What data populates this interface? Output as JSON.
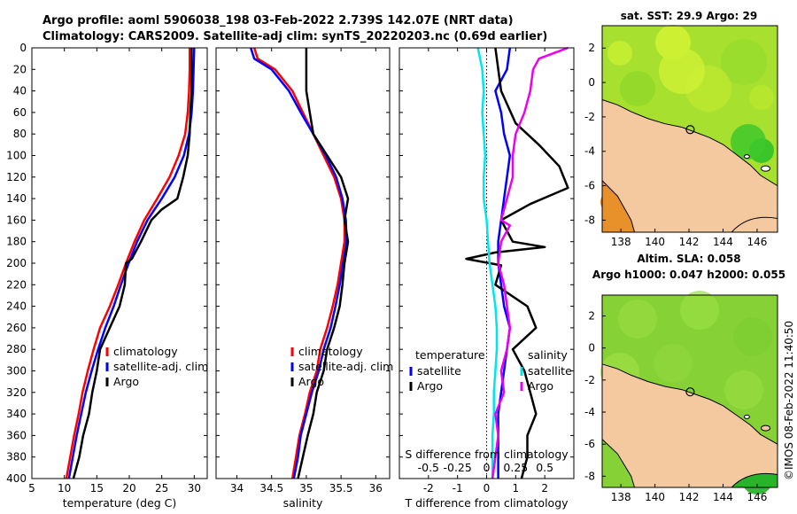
{
  "title": {
    "line1": "Argo profile: aoml 5906038_198 03-Feb-2022 2.739S 142.07E (NRT data)",
    "line2": "Climatology: CARS2009. Satellite-adj clim: synTS_20220203.nc (0.69d earlier)"
  },
  "maps": {
    "sst_title": "sat. SST: 29.9 Argo: 29",
    "sla_title1": "Altim. SLA: 0.058",
    "sla_title2": "Argo h1000: 0.047 h2000: 0.055",
    "x_ticks": [
      138,
      140,
      142,
      144,
      146
    ],
    "y_ticks": [
      2,
      0,
      -2,
      -4,
      -6,
      -8
    ],
    "x_range": [
      136.9,
      147.2
    ],
    "y_range": [
      -8.7,
      3.3
    ],
    "float_position": {
      "lon": 142.07,
      "lat": -2.739
    },
    "colors": {
      "land": "#f5c9a0",
      "sst_base": "#a8e030",
      "sla_base": "#86d236"
    }
  },
  "timestamp": "©IMOS 08-Feb-2022 11:40:50",
  "chart_data": [
    {
      "id": "temperature",
      "type": "line",
      "xlabel": "temperature (deg C)",
      "ylabel": "",
      "xlim": [
        5,
        32
      ],
      "ylim": [
        0,
        400
      ],
      "x_ticks": [
        5,
        10,
        15,
        20,
        25,
        30
      ],
      "y_ticks": [
        0,
        20,
        40,
        60,
        80,
        100,
        120,
        140,
        160,
        180,
        200,
        220,
        240,
        260,
        280,
        300,
        320,
        340,
        360,
        380,
        400
      ],
      "legend": [
        "climatology",
        "satellite-adj. clim",
        "Argo"
      ],
      "series": [
        {
          "name": "climatology",
          "color": "#ff0000",
          "points": [
            [
              29.3,
              0
            ],
            [
              29.3,
              20
            ],
            [
              29.2,
              40
            ],
            [
              29.0,
              60
            ],
            [
              28.6,
              80
            ],
            [
              27.6,
              100
            ],
            [
              26.2,
              120
            ],
            [
              24.3,
              140
            ],
            [
              22.3,
              160
            ],
            [
              20.8,
              180
            ],
            [
              19.5,
              200
            ],
            [
              18.3,
              220
            ],
            [
              17.0,
              240
            ],
            [
              15.5,
              260
            ],
            [
              14.5,
              280
            ],
            [
              13.6,
              300
            ],
            [
              12.8,
              320
            ],
            [
              12.2,
              340
            ],
            [
              11.5,
              360
            ],
            [
              10.9,
              380
            ],
            [
              10.3,
              400
            ]
          ]
        },
        {
          "name": "satellite-adj. clim",
          "color": "#0000ff",
          "points": [
            [
              30.0,
              0
            ],
            [
              29.9,
              20
            ],
            [
              29.8,
              40
            ],
            [
              29.6,
              60
            ],
            [
              29.2,
              80
            ],
            [
              28.4,
              100
            ],
            [
              27.0,
              120
            ],
            [
              25.0,
              140
            ],
            [
              22.8,
              160
            ],
            [
              21.2,
              180
            ],
            [
              19.9,
              200
            ],
            [
              18.7,
              220
            ],
            [
              17.6,
              240
            ],
            [
              16.3,
              260
            ],
            [
              15.2,
              280
            ],
            [
              14.2,
              300
            ],
            [
              13.3,
              320
            ],
            [
              12.6,
              340
            ],
            [
              11.9,
              360
            ],
            [
              11.3,
              380
            ],
            [
              10.7,
              400
            ]
          ]
        },
        {
          "name": "Argo",
          "color": "#000000",
          "points": [
            [
              29.6,
              0
            ],
            [
              29.6,
              20
            ],
            [
              29.6,
              40
            ],
            [
              29.4,
              60
            ],
            [
              29.3,
              80
            ],
            [
              29.0,
              100
            ],
            [
              28.3,
              120
            ],
            [
              27.4,
              140
            ],
            [
              25.0,
              150
            ],
            [
              23.4,
              160
            ],
            [
              21.8,
              180
            ],
            [
              20.4,
              196
            ],
            [
              19.5,
              200
            ],
            [
              19.3,
              220
            ],
            [
              18.5,
              240
            ],
            [
              17.0,
              260
            ],
            [
              15.5,
              280
            ],
            [
              15.0,
              300
            ],
            [
              14.3,
              320
            ],
            [
              13.8,
              340
            ],
            [
              12.9,
              360
            ],
            [
              12.3,
              380
            ],
            [
              11.4,
              400
            ]
          ]
        }
      ]
    },
    {
      "id": "salinity",
      "type": "line",
      "xlabel": "salinity",
      "ylabel": "",
      "xlim": [
        33.7,
        36.2
      ],
      "ylim": [
        0,
        400
      ],
      "x_ticks": [
        34,
        34.5,
        35,
        35.5,
        36
      ],
      "y_ticks": [
        0,
        20,
        40,
        60,
        80,
        100,
        120,
        140,
        160,
        180,
        200,
        220,
        240,
        260,
        280,
        300,
        320,
        340,
        360,
        380,
        400
      ],
      "legend": [
        "climatology",
        "satellite-adj. clim",
        "Argo"
      ],
      "series": [
        {
          "name": "climatology",
          "color": "#ff0000",
          "points": [
            [
              34.25,
              0
            ],
            [
              34.3,
              10
            ],
            [
              34.55,
              20
            ],
            [
              34.8,
              40
            ],
            [
              34.95,
              60
            ],
            [
              35.1,
              80
            ],
            [
              35.25,
              100
            ],
            [
              35.4,
              120
            ],
            [
              35.5,
              140
            ],
            [
              35.55,
              160
            ],
            [
              35.55,
              180
            ],
            [
              35.5,
              200
            ],
            [
              35.45,
              220
            ],
            [
              35.38,
              240
            ],
            [
              35.3,
              260
            ],
            [
              35.2,
              280
            ],
            [
              35.15,
              300
            ],
            [
              35.05,
              320
            ],
            [
              34.98,
              340
            ],
            [
              34.9,
              360
            ],
            [
              34.85,
              380
            ],
            [
              34.8,
              400
            ]
          ]
        },
        {
          "name": "satellite-adj. clim",
          "color": "#0000ff",
          "points": [
            [
              34.2,
              0
            ],
            [
              34.25,
              10
            ],
            [
              34.5,
              20
            ],
            [
              34.75,
              40
            ],
            [
              34.92,
              60
            ],
            [
              35.1,
              80
            ],
            [
              35.28,
              100
            ],
            [
              35.43,
              120
            ],
            [
              35.52,
              140
            ],
            [
              35.57,
              160
            ],
            [
              35.58,
              180
            ],
            [
              35.53,
              200
            ],
            [
              35.48,
              220
            ],
            [
              35.42,
              240
            ],
            [
              35.35,
              260
            ],
            [
              35.25,
              280
            ],
            [
              35.18,
              300
            ],
            [
              35.08,
              320
            ],
            [
              35.0,
              340
            ],
            [
              34.92,
              360
            ],
            [
              34.88,
              380
            ],
            [
              34.82,
              400
            ]
          ]
        },
        {
          "name": "Argo",
          "color": "#000000",
          "points": [
            [
              35.0,
              0
            ],
            [
              35.0,
              20
            ],
            [
              35.0,
              40
            ],
            [
              35.05,
              60
            ],
            [
              35.1,
              80
            ],
            [
              35.3,
              100
            ],
            [
              35.5,
              120
            ],
            [
              35.6,
              140
            ],
            [
              35.55,
              160
            ],
            [
              35.6,
              180
            ],
            [
              35.55,
              200
            ],
            [
              35.52,
              220
            ],
            [
              35.48,
              240
            ],
            [
              35.4,
              260
            ],
            [
              35.3,
              280
            ],
            [
              35.25,
              300
            ],
            [
              35.15,
              320
            ],
            [
              35.1,
              340
            ],
            [
              35.02,
              360
            ],
            [
              34.95,
              380
            ],
            [
              34.88,
              400
            ]
          ]
        }
      ]
    },
    {
      "id": "differences",
      "type": "line",
      "xlabel": "T difference from climatology",
      "xlabel2": "S difference from climatology",
      "xlim": [
        -3,
        3
      ],
      "ylim": [
        0,
        400
      ],
      "x_ticks": [
        -2,
        -1,
        0,
        1,
        2
      ],
      "x_ticks_s": [
        -0.5,
        -0.25,
        0,
        0.25,
        0.5
      ],
      "x_ticks_s_labels": [
        "-0.5",
        "-0.25",
        "0",
        "0.25",
        "0.5"
      ],
      "x_ticks_s_positions": [
        -2,
        -1,
        0,
        1,
        2
      ],
      "y_ticks": [
        0,
        20,
        40,
        60,
        80,
        100,
        120,
        140,
        160,
        180,
        200,
        220,
        240,
        260,
        280,
        300,
        320,
        340,
        360,
        380,
        400
      ],
      "legend_left_title": "temperature",
      "legend_right_title": "salinity",
      "legend_left": [
        "satellite",
        "Argo"
      ],
      "legend_right": [
        "satellite",
        "Argo"
      ],
      "series": [
        {
          "name": "T satellite",
          "color": "#0000ff",
          "points": [
            [
              0.8,
              0
            ],
            [
              0.7,
              20
            ],
            [
              0.3,
              40
            ],
            [
              0.5,
              60
            ],
            [
              0.6,
              80
            ],
            [
              0.8,
              100
            ],
            [
              0.7,
              120
            ],
            [
              0.6,
              140
            ],
            [
              0.5,
              160
            ],
            [
              0.4,
              180
            ],
            [
              0.4,
              200
            ],
            [
              0.5,
              220
            ],
            [
              0.6,
              240
            ],
            [
              0.8,
              260
            ],
            [
              0.7,
              280
            ],
            [
              0.6,
              300
            ],
            [
              0.5,
              320
            ],
            [
              0.4,
              340
            ],
            [
              0.4,
              360
            ],
            [
              0.4,
              380
            ],
            [
              0.4,
              400
            ]
          ]
        },
        {
          "name": "T Argo",
          "color": "#000000",
          "points": [
            [
              0.3,
              0
            ],
            [
              0.5,
              40
            ],
            [
              1.0,
              70
            ],
            [
              1.8,
              90
            ],
            [
              2.5,
              110
            ],
            [
              2.8,
              130
            ],
            [
              1.5,
              145
            ],
            [
              0.5,
              160
            ],
            [
              0.9,
              180
            ],
            [
              2.0,
              185
            ],
            [
              0.3,
              190
            ],
            [
              -0.7,
              196
            ],
            [
              0.5,
              202
            ],
            [
              0.3,
              220
            ],
            [
              1.4,
              240
            ],
            [
              1.7,
              260
            ],
            [
              0.9,
              280
            ],
            [
              1.3,
              300
            ],
            [
              1.5,
              320
            ],
            [
              1.7,
              340
            ],
            [
              1.4,
              360
            ],
            [
              1.4,
              380
            ],
            [
              1.2,
              400
            ]
          ]
        },
        {
          "name": "S satellite",
          "color": "#00e5ee",
          "points": [
            [
              -0.3,
              0
            ],
            [
              -0.15,
              20
            ],
            [
              -0.1,
              40
            ],
            [
              -0.15,
              60
            ],
            [
              -0.1,
              80
            ],
            [
              -0.05,
              100
            ],
            [
              -0.1,
              120
            ],
            [
              -0.1,
              140
            ],
            [
              0.0,
              160
            ],
            [
              0.05,
              180
            ],
            [
              0.1,
              200
            ],
            [
              0.2,
              220
            ],
            [
              0.3,
              240
            ],
            [
              0.35,
              260
            ],
            [
              0.35,
              280
            ],
            [
              0.3,
              300
            ],
            [
              0.25,
              320
            ],
            [
              0.25,
              340
            ],
            [
              0.2,
              360
            ],
            [
              0.2,
              380
            ],
            [
              0.2,
              400
            ]
          ]
        },
        {
          "name": "S Argo",
          "color": "#ee00ee",
          "points": [
            [
              2.8,
              0
            ],
            [
              1.8,
              10
            ],
            [
              1.6,
              20
            ],
            [
              1.5,
              40
            ],
            [
              1.3,
              60
            ],
            [
              1.0,
              80
            ],
            [
              0.9,
              100
            ],
            [
              0.9,
              120
            ],
            [
              0.7,
              140
            ],
            [
              0.5,
              160
            ],
            [
              0.8,
              165
            ],
            [
              0.5,
              180
            ],
            [
              0.4,
              200
            ],
            [
              0.6,
              220
            ],
            [
              0.7,
              240
            ],
            [
              0.8,
              260
            ],
            [
              0.7,
              280
            ],
            [
              0.5,
              300
            ],
            [
              0.6,
              320
            ],
            [
              0.3,
              340
            ],
            [
              0.4,
              360
            ],
            [
              0.3,
              380
            ],
            [
              0.2,
              400
            ]
          ]
        }
      ]
    }
  ]
}
